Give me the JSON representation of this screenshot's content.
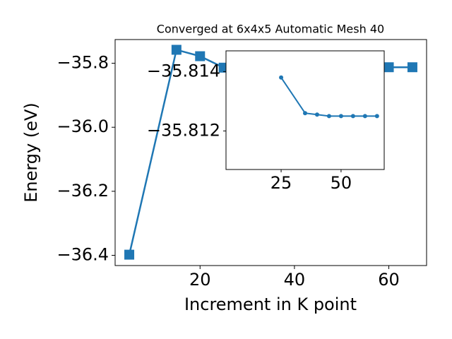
{
  "chart_data": [
    {
      "type": "line",
      "title": "Converged at 6x4x5 Automatic Mesh 40",
      "x_label": "Increment in K point",
      "y_label": "Energy (eV)",
      "x": [
        5,
        15,
        20,
        25,
        35,
        40,
        45,
        50,
        55,
        60,
        65
      ],
      "series": [
        {
          "color": "#1f77b4",
          "marker": "square",
          "values": [
            -36.398,
            -35.758,
            -35.778,
            -35.8138,
            -35.8126,
            -35.8126,
            -35.8125,
            -35.8125,
            -35.8125,
            -35.8125,
            -35.8125
          ]
        }
      ],
      "xlim": [
        2,
        68
      ],
      "ylim": [
        -36.432,
        -35.726
      ],
      "xticks": [
        20,
        40,
        60
      ],
      "yticks": [
        {
          "value": -35.8,
          "label": "−35.8"
        },
        {
          "value": -36.0,
          "label": "−36.0"
        },
        {
          "value": -36.2,
          "label": "−36.2"
        },
        {
          "value": -36.4,
          "label": "−36.4"
        }
      ]
    },
    {
      "type": "line",
      "x": [
        25,
        35,
        40,
        45,
        50,
        55,
        60,
        65
      ],
      "series": [
        {
          "color": "#1f77b4",
          "marker": "circle",
          "values": [
            -35.8138,
            -35.8126,
            -35.81255,
            -35.8125,
            -35.8125,
            -35.8125,
            -35.8125,
            -35.8125
          ]
        }
      ],
      "xlim": [
        2,
        68
      ],
      "ylim": [
        -35.8107,
        -35.8147
      ],
      "xticks": [
        25,
        50
      ],
      "yticks": [
        {
          "value": -35.814,
          "label": "−35.814"
        },
        {
          "value": -35.812,
          "label": "−35.812"
        }
      ]
    }
  ]
}
